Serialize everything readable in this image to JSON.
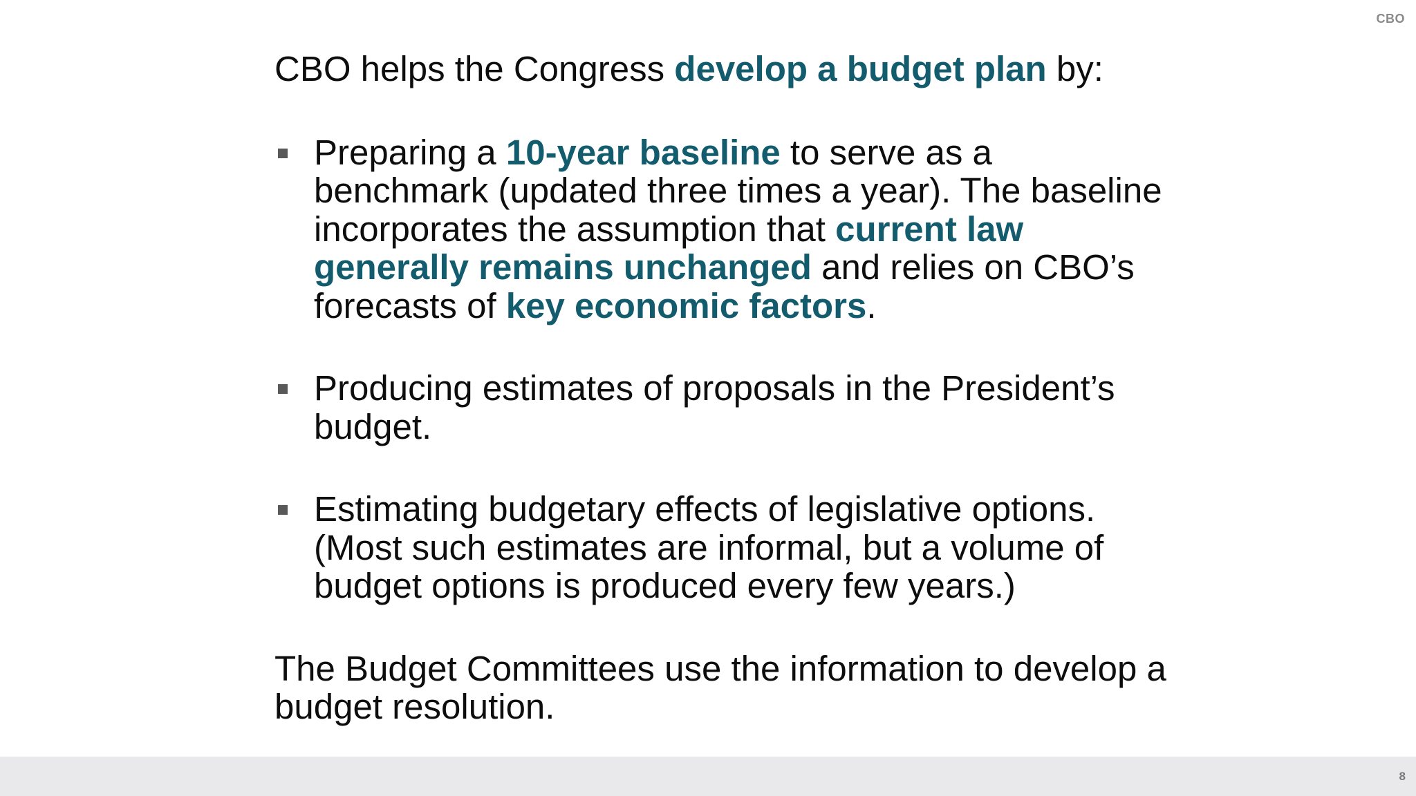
{
  "header": {
    "corner_label": "CBO"
  },
  "intro": {
    "text_before": "CBO helps the Congress ",
    "highlight": "develop a budget plan",
    "text_after": " by:"
  },
  "bullets": [
    {
      "p1": "Preparing a ",
      "h1": "10-year baseline",
      "p2": " to serve as a benchmark (updated three times a year). The baseline incorporates the assumption that ",
      "h2": "current law generally remains unchanged",
      "p3": " and relies on CBO’s forecasts of ",
      "h3": "key economic factors",
      "p4": "."
    },
    {
      "text": "Producing estimates of proposals in the President’s budget."
    },
    {
      "text": "Estimating budgetary effects of legislative options. (Most such estimates are informal, but a volume of budget options is produced every few years.)"
    }
  ],
  "closing": "The Budget Committees use the information to develop a budget resolution.",
  "footer": {
    "page_number": "8"
  },
  "colors": {
    "highlight": "#135c6e",
    "body_text": "#0d0d0d",
    "bullet_marker": "#595959",
    "footer_bar": "#e9e9eb"
  }
}
